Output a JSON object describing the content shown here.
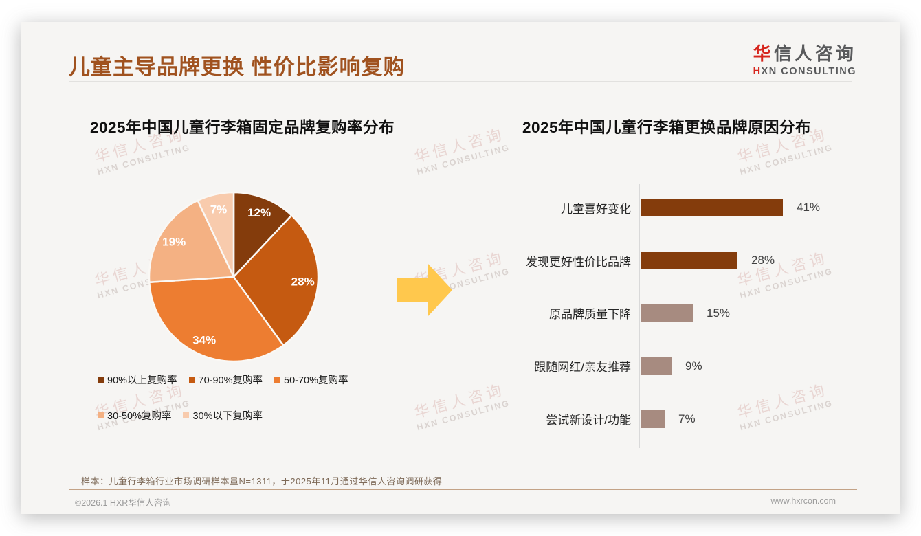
{
  "page": {
    "title": "儿童主导品牌更换 性价比影响复购",
    "logo": {
      "zh_first": "华",
      "zh_rest": "信人咨询",
      "en_first": "H",
      "en_rest": "XN CONSULTING"
    },
    "watermark": {
      "line1": "华信人咨询",
      "line2": "HXN CONSULTING"
    },
    "sample_note": "样本：儿童行李箱行业市场调研样本量N=1311，于2025年11月通过华信人咨询调研获得",
    "footer": {
      "copyright": "©2026.1 HXR华信人咨询",
      "website": "www.hxrcon.com"
    }
  },
  "colors": {
    "title_accent": "#a0521f",
    "logo_red": "#d6251d",
    "logo_gray": "#595a5c",
    "arrow": "#ffc84d",
    "bar_brown": "#843c0c",
    "bar_mauve": "#a78b80",
    "axis_line": "#d9d9d9",
    "footer_line": "#c3a286"
  },
  "chart_data": [
    {
      "type": "pie",
      "title": "2025年中国儿童行李箱固定品牌复购率分布",
      "labels": [
        "90%以上复购率",
        "70-90%复购率",
        "50-70%复购率",
        "30-50%复购率",
        "30%以下复购率"
      ],
      "values": [
        12,
        28,
        34,
        19,
        7
      ],
      "unit": "%",
      "colors": [
        "#843c0c",
        "#c55a11",
        "#ed7d31",
        "#f4b183",
        "#f8cbad"
      ],
      "start_angle_deg": 0,
      "direction": "clockwise",
      "value_labels": [
        "12%",
        "28%",
        "34%",
        "19%",
        "7%"
      ],
      "legend_position": "bottom"
    },
    {
      "type": "bar",
      "orientation": "horizontal",
      "title": "2025年中国儿童行李箱更换品牌原因分布",
      "categories": [
        "儿童喜好变化",
        "发现更好性价比品牌",
        "原品牌质量下降",
        "跟随网红/亲友推荐",
        "尝试新设计/功能"
      ],
      "values": [
        41,
        28,
        15,
        9,
        7
      ],
      "value_labels": [
        "41%",
        "28%",
        "15%",
        "9%",
        "7%"
      ],
      "bar_colors": [
        "#843c0c",
        "#843c0c",
        "#a78b80",
        "#a78b80",
        "#a78b80"
      ],
      "xlim": [
        0,
        45
      ],
      "grid": false,
      "legend_position": "none"
    }
  ]
}
